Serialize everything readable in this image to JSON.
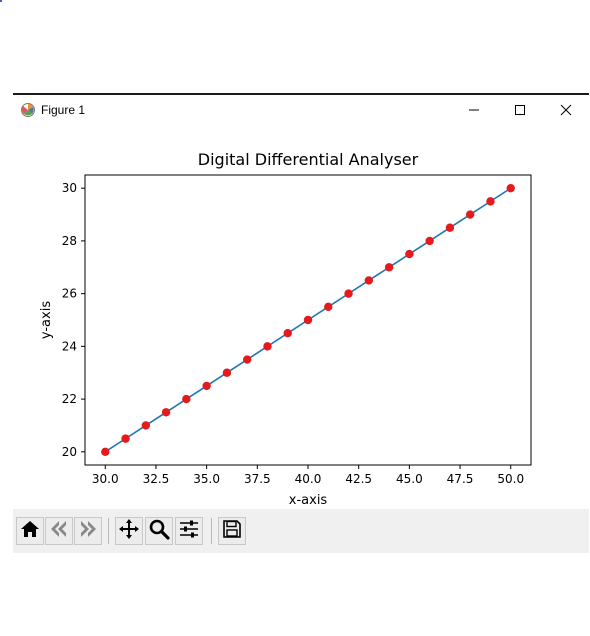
{
  "window": {
    "title": "Figure 1",
    "controls": {
      "minimize": "minimize",
      "maximize": "maximize",
      "close": "close"
    }
  },
  "toolbar": {
    "buttons": [
      {
        "id": "home",
        "icon": "home-icon"
      },
      {
        "id": "back",
        "icon": "back-arrow-icon"
      },
      {
        "id": "forward",
        "icon": "forward-arrow-icon"
      },
      {
        "id": "pan",
        "icon": "move-icon"
      },
      {
        "id": "zoom",
        "icon": "magnifier-icon"
      },
      {
        "id": "configure",
        "icon": "sliders-icon"
      },
      {
        "id": "save",
        "icon": "floppy-disk-icon"
      }
    ]
  },
  "chart_data": {
    "type": "scatter",
    "title": "Digital Differential Analyser",
    "xlabel": "x-axis",
    "ylabel": "y-axis",
    "xlim": [
      29.0,
      51.0
    ],
    "ylim": [
      19.5,
      30.5
    ],
    "xticks": [
      30.0,
      32.5,
      35.0,
      37.5,
      40.0,
      42.5,
      45.0,
      47.5,
      50.0
    ],
    "xtick_labels": [
      "30.0",
      "32.5",
      "35.0",
      "37.5",
      "40.0",
      "42.5",
      "45.0",
      "47.5",
      "50.0"
    ],
    "yticks": [
      20,
      22,
      24,
      26,
      28,
      30
    ],
    "ytick_labels": [
      "20",
      "22",
      "24",
      "26",
      "28",
      "30"
    ],
    "grid": false,
    "line_color": "#1f77b4",
    "marker_color": "#e41a1c",
    "x": [
      30,
      31,
      32,
      33,
      34,
      35,
      36,
      37,
      38,
      39,
      40,
      41,
      42,
      43,
      44,
      45,
      46,
      47,
      48,
      49,
      50
    ],
    "y": [
      20,
      20.5,
      21,
      21.5,
      22,
      22.5,
      23,
      23.5,
      24,
      24.5,
      25,
      25.5,
      26,
      26.5,
      27,
      27.5,
      28,
      28.5,
      29,
      29.5,
      30
    ]
  }
}
